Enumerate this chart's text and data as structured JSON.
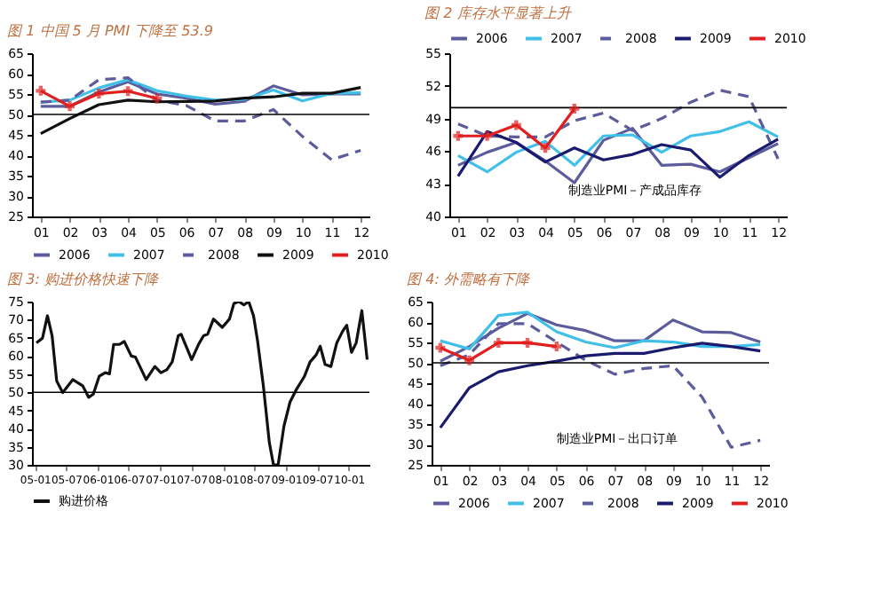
{
  "chart_data": [
    {
      "type": "line",
      "title": "图 1 中国 5 月 PMI 下降至 53.9",
      "categories": [
        "01",
        "02",
        "03",
        "04",
        "05",
        "06",
        "07",
        "08",
        "09",
        "10",
        "11",
        "12"
      ],
      "ylim": [
        25,
        65
      ],
      "yticks": [
        25,
        30,
        35,
        40,
        45,
        50,
        55,
        60,
        65
      ],
      "grid": false,
      "legend": "bottom",
      "ref_lines": [
        {
          "axis": "y",
          "value": 50,
          "color": "#000000"
        }
      ],
      "series": [
        {
          "name": "2006",
          "color": "#5c5c9c",
          "values": [
            52,
            52,
            55.5,
            58,
            55,
            54,
            52.5,
            53.2,
            57,
            54.8,
            55,
            55
          ]
        },
        {
          "name": "2007",
          "color": "#40c0e8",
          "values": [
            53,
            53.5,
            56.5,
            58.5,
            55.8,
            54.5,
            53.5,
            53.7,
            56,
            53.3,
            55.2,
            55.3
          ]
        },
        {
          "name": "2008",
          "color": "#5c5c9c",
          "line_style": "dashed",
          "values": [
            53,
            53.5,
            58.5,
            59,
            53.5,
            52.2,
            48.4,
            48.4,
            51.2,
            44.6,
            38.9,
            41.2
          ]
        },
        {
          "name": "2009",
          "color": "#111111",
          "values": [
            45.3,
            49,
            52.4,
            53.5,
            53.1,
            53.2,
            53.3,
            54,
            54.3,
            55.2,
            55.2,
            56.6
          ]
        },
        {
          "name": "2010",
          "color": "#e02020",
          "marker": "cross",
          "values": [
            55.8,
            52,
            55.1,
            55.7,
            53.9,
            null,
            null,
            null,
            null,
            null,
            null,
            null
          ]
        }
      ]
    },
    {
      "type": "line",
      "title": "图 2 库存水平显著上升",
      "categories": [
        "01",
        "02",
        "03",
        "04",
        "05",
        "06",
        "07",
        "08",
        "09",
        "10",
        "11",
        "12"
      ],
      "ylim": [
        40,
        55
      ],
      "yticks": [
        40,
        43,
        46,
        49,
        52,
        55
      ],
      "grid": false,
      "legend": "top",
      "annotations": [
        "制造业PMI－产成品库存"
      ],
      "ref_lines": [
        {
          "axis": "y",
          "value": 50,
          "color": "#000000"
        }
      ],
      "series": [
        {
          "name": "2006",
          "color": "#5c5c9c",
          "values": [
            44.7,
            45.9,
            46.8,
            45.1,
            43.1,
            47,
            48.1,
            44.7,
            44.8,
            44.1,
            45.4,
            46.7
          ]
        },
        {
          "name": "2007",
          "color": "#40c0e8",
          "values": [
            45.6,
            44.1,
            45.9,
            46.9,
            44.7,
            47.4,
            47.5,
            45.9,
            47.4,
            47.8,
            48.7,
            47.3
          ]
        },
        {
          "name": "2008",
          "color": "#5c5c9c",
          "line_style": "dashed",
          "values": [
            48.5,
            47.4,
            47.3,
            47.3,
            48.8,
            49.5,
            47.9,
            49,
            50.5,
            51.6,
            51,
            45.3
          ]
        },
        {
          "name": "2009",
          "color": "#1a1a6e",
          "values": [
            43.7,
            47.8,
            46.8,
            45,
            46.3,
            45.2,
            45.7,
            46.6,
            46.1,
            43.6,
            45.6,
            47.1
          ]
        },
        {
          "name": "2010",
          "color": "#e02020",
          "marker": "cross",
          "values": [
            47.4,
            47.4,
            48.4,
            46.3,
            49.9,
            null,
            null,
            null,
            null,
            null,
            null,
            null
          ]
        }
      ]
    },
    {
      "type": "line",
      "title": "图 3: 购进价格快速下降",
      "xlim": [
        "2004-12-15",
        "2010-05-01"
      ],
      "xticks": [
        {
          "value": "2005-01",
          "label": "05-01"
        },
        {
          "value": "2005-07",
          "label": "05-07"
        },
        {
          "value": "2006-01",
          "label": "06-01"
        },
        {
          "value": "2006-07",
          "label": "06-07"
        },
        {
          "value": "2007-01",
          "label": "07-01"
        },
        {
          "value": "2007-07",
          "label": "07-07"
        },
        {
          "value": "2008-01",
          "label": "08-01"
        },
        {
          "value": "2008-07",
          "label": "08-07"
        },
        {
          "value": "2009-01",
          "label": "09-01"
        },
        {
          "value": "2009-07",
          "label": "09-07"
        },
        {
          "value": "2010-01",
          "label": "10-01"
        }
      ],
      "ylim": [
        30,
        75
      ],
      "yticks": [
        30,
        35,
        40,
        45,
        50,
        55,
        60,
        65,
        70,
        75
      ],
      "grid": false,
      "legend": "bottom",
      "ref_lines": [
        {
          "axis": "y",
          "value": 50,
          "color": "#000000"
        }
      ],
      "series": [
        {
          "name": "购进价格",
          "color": "#111111",
          "x": [
            "2005-01-10",
            "2005-02-14",
            "2005-03-15",
            "2005-04-11",
            "2005-05-08",
            "2005-06-12",
            "2005-08-09",
            "2005-10-06",
            "2005-11-10",
            "2005-12-07",
            "2006-01-10",
            "2006-02-14",
            "2006-03-11",
            "2006-04-04",
            "2006-05-08",
            "2006-06-05",
            "2006-07-16",
            "2006-08-09",
            "2006-10-10",
            "2006-11-30",
            "2007-01-04",
            "2007-02-07",
            "2007-03-11",
            "2007-04-15",
            "2007-05-02",
            "2007-07-02",
            "2007-08-12",
            "2007-09-09",
            "2007-10-03",
            "2007-11-06",
            "2007-12-27",
            "2008-02-07",
            "2008-03-04",
            "2008-04-01",
            "2008-05-01",
            "2008-05-29",
            "2008-06-26",
            "2008-07-19",
            "2008-08-22",
            "2008-09-26",
            "2008-10-20",
            "2008-11-16",
            "2008-12-20",
            "2009-01-24",
            "2009-02-27",
            "2009-04-18",
            "2009-05-21",
            "2009-06-25",
            "2009-07-19",
            "2009-08-16",
            "2009-09-19",
            "2009-10-23",
            "2009-11-27",
            "2009-12-20",
            "2010-01-17",
            "2010-02-13",
            "2010-03-18",
            "2010-04-18"
          ],
          "values": [
            63.6,
            64.9,
            71.1,
            65.6,
            53.1,
            49.9,
            53.5,
            51.8,
            48.6,
            49.5,
            54.4,
            55.4,
            55.1,
            63.2,
            63.2,
            64,
            60,
            59.7,
            53.5,
            57.1,
            55.4,
            56.2,
            58.4,
            65.6,
            66,
            59,
            63.3,
            65.6,
            66,
            70.2,
            67.9,
            70.2,
            74.5,
            75,
            74.1,
            75,
            71.1,
            64.3,
            51.8,
            36.1,
            30,
            30,
            40.7,
            47.3,
            50.5,
            54.4,
            58.4,
            60.3,
            62.7,
            57.7,
            57.1,
            63.6,
            66.9,
            68.5,
            61,
            63.6,
            72.5,
            59
          ]
        }
      ]
    },
    {
      "type": "line",
      "title": "图 4: 外需略有下降",
      "categories": [
        "01",
        "02",
        "03",
        "04",
        "05",
        "06",
        "07",
        "08",
        "09",
        "10",
        "11",
        "12"
      ],
      "ylim": [
        25,
        65
      ],
      "yticks": [
        25,
        30,
        35,
        40,
        45,
        50,
        55,
        60,
        65
      ],
      "grid": false,
      "legend": "bottom",
      "annotations": [
        "制造业PMI－出口订单"
      ],
      "ref_lines": [
        {
          "axis": "y",
          "value": 50,
          "color": "#000000"
        }
      ],
      "series": [
        {
          "name": "2006",
          "color": "#5c5c9c",
          "values": [
            50.4,
            54,
            58.5,
            62.1,
            59.3,
            57.9,
            55.4,
            55.4,
            60.5,
            57.6,
            57.4,
            55.1
          ]
        },
        {
          "name": "2007",
          "color": "#40c0e8",
          "values": [
            55.4,
            53.4,
            61.6,
            62.4,
            57.6,
            55.1,
            53.7,
            55.4,
            55.1,
            54,
            54,
            54.5
          ]
        },
        {
          "name": "2008",
          "color": "#5c5c9c",
          "line_style": "dashed",
          "values": [
            49.3,
            52,
            59.6,
            59.6,
            55.1,
            50.6,
            47.2,
            48.6,
            49.3,
            41.6,
            29.3,
            31
          ]
        },
        {
          "name": "2009",
          "color": "#1a1a6e",
          "values": [
            34.1,
            43.9,
            47.8,
            49.3,
            50.4,
            51.7,
            52.3,
            52.3,
            53.7,
            54.8,
            54,
            52.9
          ]
        },
        {
          "name": "2010",
          "color": "#e02020",
          "marker": "cross",
          "values": [
            53.7,
            50.6,
            54.9,
            54.9,
            54,
            null,
            null,
            null,
            null,
            null,
            null,
            null
          ]
        }
      ]
    }
  ]
}
